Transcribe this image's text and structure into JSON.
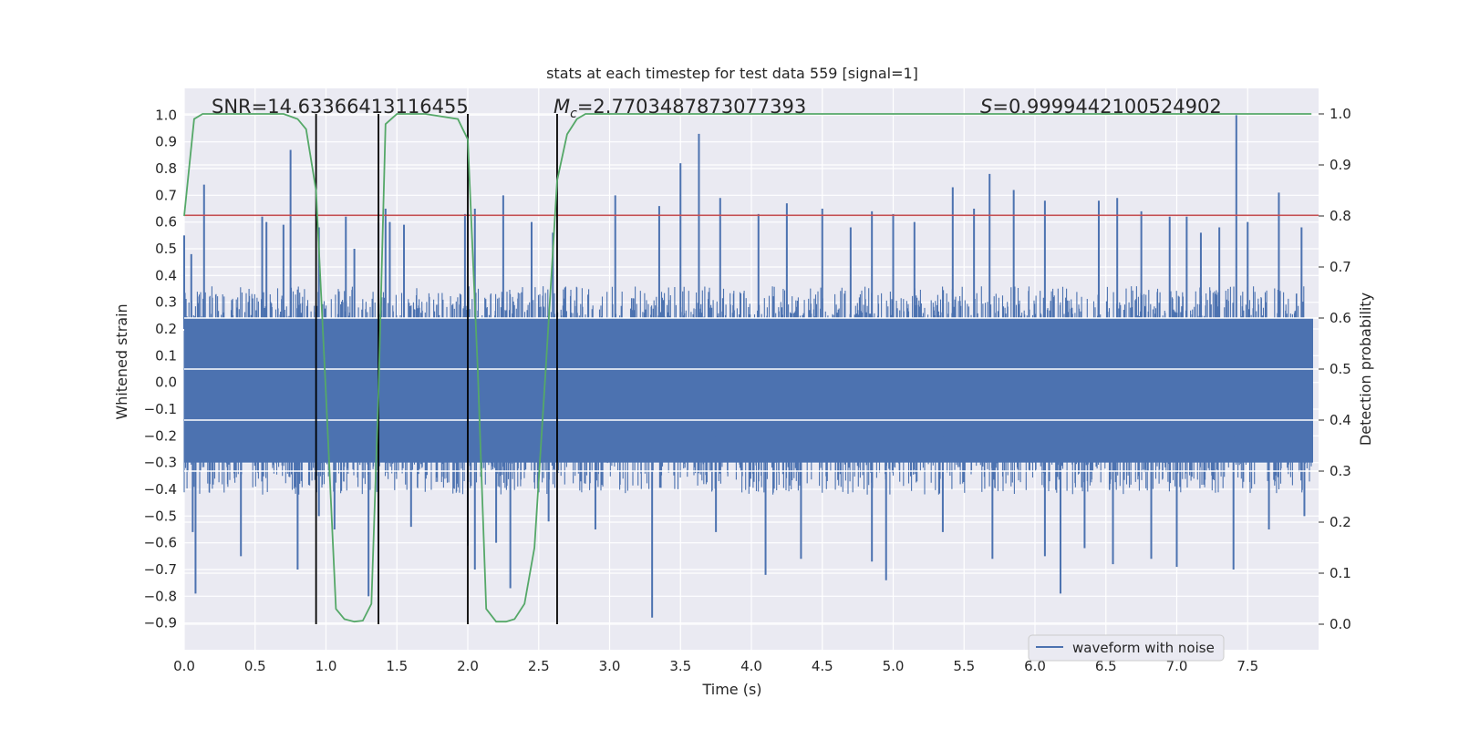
{
  "chart_data": {
    "type": "line",
    "title": "stats at each timestep for test data 559 [signal=1]",
    "xlabel": "Time (s)",
    "ylabel_left": "Whitened strain",
    "ylabel_right": "Detection probability",
    "xlim": [
      0.0,
      8.0
    ],
    "ylim_left": [
      -1.0,
      1.1
    ],
    "ylim_right": [
      -0.05,
      1.05
    ],
    "x_ticks": [
      "0.0",
      "0.5",
      "1.0",
      "1.5",
      "2.0",
      "2.5",
      "3.0",
      "3.5",
      "4.0",
      "4.5",
      "5.0",
      "5.5",
      "6.0",
      "6.5",
      "7.0",
      "7.5"
    ],
    "y_ticks_left": [
      "-0.9",
      "-0.8",
      "-0.7",
      "-0.6",
      "-0.5",
      "-0.4",
      "-0.3",
      "-0.2",
      "-0.1",
      "0.0",
      "0.1",
      "0.2",
      "0.3",
      "0.4",
      "0.5",
      "0.6",
      "0.7",
      "0.8",
      "0.9",
      "1.0"
    ],
    "y_ticks_right": [
      "0.0",
      "0.1",
      "0.2",
      "0.3",
      "0.4",
      "0.5",
      "0.6",
      "0.7",
      "0.8",
      "0.9",
      "1.0"
    ],
    "grid": true,
    "background_color": "#eaeaf2",
    "annotations": {
      "snr": "SNR=14.63366413116455",
      "mc_symbol": "M",
      "mc_subscript": "c",
      "mc_value": "=2.7703487873077393",
      "s_symbol": "S",
      "s_value": "=0.9999442100524902"
    },
    "threshold": {
      "value": 0.625,
      "axis": "left",
      "color": "#c44e52"
    },
    "vertical_markers": [
      0.93,
      1.37,
      2.0,
      2.63
    ],
    "legend": {
      "position": "lower-right",
      "entries": [
        "waveform with noise"
      ]
    },
    "series": [
      {
        "name": "waveform with noise",
        "axis": "left",
        "color": "#4c72b0",
        "style": "noise",
        "envelope_positive_typical": 0.3,
        "envelope_negative_typical": -0.35,
        "peaks": [
          [
            0.0,
            0.55
          ],
          [
            0.05,
            0.48
          ],
          [
            0.14,
            0.74
          ],
          [
            0.55,
            0.62
          ],
          [
            0.58,
            0.6
          ],
          [
            0.7,
            0.59
          ],
          [
            0.75,
            0.87
          ],
          [
            0.95,
            0.58
          ],
          [
            1.14,
            0.62
          ],
          [
            1.2,
            0.5
          ],
          [
            1.37,
            0.6
          ],
          [
            1.42,
            0.65
          ],
          [
            1.45,
            0.6
          ],
          [
            1.55,
            0.59
          ],
          [
            1.98,
            0.63
          ],
          [
            2.05,
            0.65
          ],
          [
            2.25,
            0.7
          ],
          [
            2.45,
            0.6
          ],
          [
            2.6,
            0.56
          ],
          [
            3.04,
            0.7
          ],
          [
            3.35,
            0.66
          ],
          [
            3.5,
            0.82
          ],
          [
            3.63,
            0.93
          ],
          [
            3.78,
            0.69
          ],
          [
            4.05,
            0.63
          ],
          [
            4.25,
            0.67
          ],
          [
            4.5,
            0.65
          ],
          [
            4.7,
            0.58
          ],
          [
            4.85,
            0.64
          ],
          [
            5.0,
            0.63
          ],
          [
            5.15,
            0.6
          ],
          [
            5.42,
            0.73
          ],
          [
            5.57,
            0.65
          ],
          [
            5.68,
            0.78
          ],
          [
            5.85,
            0.72
          ],
          [
            6.07,
            0.68
          ],
          [
            6.45,
            0.68
          ],
          [
            6.58,
            0.69
          ],
          [
            6.75,
            0.64
          ],
          [
            6.95,
            0.62
          ],
          [
            7.07,
            0.62
          ],
          [
            7.17,
            0.56
          ],
          [
            7.3,
            0.58
          ],
          [
            7.42,
            1.0
          ],
          [
            7.5,
            0.6
          ],
          [
            7.72,
            0.71
          ],
          [
            7.88,
            0.58
          ]
        ],
        "troughs": [
          [
            0.06,
            -0.56
          ],
          [
            0.08,
            -0.79
          ],
          [
            0.4,
            -0.65
          ],
          [
            0.8,
            -0.7
          ],
          [
            0.95,
            -0.5
          ],
          [
            1.06,
            -0.55
          ],
          [
            1.3,
            -0.8
          ],
          [
            1.37,
            -0.59
          ],
          [
            1.6,
            -0.54
          ],
          [
            2.0,
            -0.61
          ],
          [
            2.05,
            -0.7
          ],
          [
            2.2,
            -0.6
          ],
          [
            2.3,
            -0.77
          ],
          [
            2.57,
            -0.52
          ],
          [
            2.9,
            -0.55
          ],
          [
            3.3,
            -0.88
          ],
          [
            3.75,
            -0.56
          ],
          [
            4.1,
            -0.72
          ],
          [
            4.35,
            -0.66
          ],
          [
            4.85,
            -0.67
          ],
          [
            4.95,
            -0.74
          ],
          [
            5.35,
            -0.56
          ],
          [
            5.7,
            -0.66
          ],
          [
            6.07,
            -0.65
          ],
          [
            6.18,
            -0.79
          ],
          [
            6.35,
            -0.62
          ],
          [
            6.55,
            -0.68
          ],
          [
            6.82,
            -0.66
          ],
          [
            7.0,
            -0.69
          ],
          [
            7.4,
            -0.7
          ],
          [
            7.65,
            -0.55
          ],
          [
            7.9,
            -0.5
          ]
        ]
      },
      {
        "name": "",
        "axis": "right",
        "color": "#55a868",
        "style": "line",
        "x": [
          0.0,
          0.07,
          0.13,
          0.3,
          0.7,
          0.8,
          0.86,
          0.93,
          1.0,
          1.07,
          1.13,
          1.2,
          1.26,
          1.32,
          1.37,
          1.42,
          1.5,
          1.7,
          1.93,
          2.0,
          2.07,
          2.13,
          2.2,
          2.27,
          2.33,
          2.4,
          2.47,
          2.55,
          2.63,
          2.7,
          2.77,
          2.83,
          2.9,
          3.2,
          7.95
        ],
        "y": [
          0.8,
          0.99,
          1.0,
          1.0,
          1.0,
          0.99,
          0.97,
          0.85,
          0.45,
          0.03,
          0.01,
          0.005,
          0.007,
          0.04,
          0.45,
          0.98,
          1.0,
          1.0,
          0.99,
          0.95,
          0.5,
          0.03,
          0.005,
          0.005,
          0.01,
          0.04,
          0.15,
          0.5,
          0.87,
          0.96,
          0.99,
          1.0,
          1.0,
          1.0,
          1.0
        ]
      }
    ]
  }
}
